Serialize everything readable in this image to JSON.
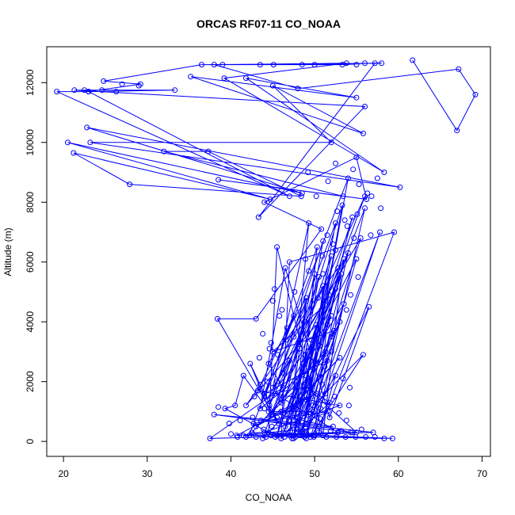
{
  "chart_data": {
    "type": "scatter",
    "title": "ORCAS RF07-11 CO_NOAA",
    "xlabel": "CO_NOAA",
    "ylabel": "Altitude (m)",
    "xlim": [
      18,
      71
    ],
    "ylim": [
      -500,
      13200
    ],
    "xticks": [
      20,
      30,
      40,
      50,
      60,
      70
    ],
    "yticks": [
      0,
      2000,
      4000,
      6000,
      8000,
      10000,
      12000
    ],
    "grid": false,
    "connected": true,
    "series_color": "#0000ff",
    "series": [
      {
        "values": [
          [
            61.7,
            12750
          ],
          [
            67.0,
            10400
          ],
          [
            69.2,
            11600
          ],
          [
            67.2,
            12450
          ],
          [
            48.0,
            11800
          ],
          [
            38.0,
            12600
          ],
          [
            48.5,
            12600
          ],
          [
            58.0,
            12650
          ],
          [
            36.5,
            12600
          ],
          [
            24.8,
            12050
          ],
          [
            29.2,
            11950
          ],
          [
            23.0,
            11700
          ],
          [
            19.2,
            11700
          ],
          [
            47.0,
            8200
          ],
          [
            23.0,
            11700
          ],
          [
            33.3,
            11750
          ],
          [
            21.3,
            11750
          ],
          [
            56.0,
            11200
          ],
          [
            43.3,
            7500
          ],
          [
            57.2,
            12650
          ],
          [
            53.3,
            12600
          ],
          [
            39.0,
            12600
          ],
          [
            53.8,
            12650
          ],
          [
            39.2,
            12150
          ],
          [
            58.3,
            9000
          ],
          [
            41.8,
            12150
          ],
          [
            55.0,
            11500
          ],
          [
            35.2,
            12200
          ],
          [
            55.8,
            10300
          ],
          [
            45.0,
            11900
          ],
          [
            52.0,
            10000
          ],
          [
            23.2,
            10000
          ],
          [
            60.2,
            8500
          ],
          [
            22.8,
            10500
          ],
          [
            48.5,
            8300
          ],
          [
            20.5,
            10000
          ],
          [
            44.7,
            8100
          ],
          [
            21.2,
            9650
          ],
          [
            27.9,
            8600
          ],
          [
            48.4,
            8200
          ],
          [
            37.3,
            9700
          ],
          [
            32.0,
            9700
          ],
          [
            53.4,
            8200
          ],
          [
            38.5,
            8750
          ],
          [
            56.2,
            8100
          ],
          [
            55.0,
            9500
          ],
          [
            44.0,
            8000
          ],
          [
            50.8,
            7100
          ],
          [
            43.0,
            4100
          ],
          [
            38.4,
            4100
          ],
          [
            45.7,
            600
          ],
          [
            42.3,
            2600
          ],
          [
            44.8,
            900
          ],
          [
            41.5,
            2200
          ],
          [
            40.5,
            1200
          ],
          [
            39.3,
            1100
          ],
          [
            44.5,
            300
          ],
          [
            45.5,
            6500
          ],
          [
            51.0,
            200
          ],
          [
            53.2,
            5600
          ],
          [
            48.0,
            800
          ],
          [
            52.0,
            3000
          ],
          [
            43.5,
            1100
          ],
          [
            46.5,
            5800
          ],
          [
            51.8,
            800
          ],
          [
            56.5,
            4500
          ],
          [
            49.0,
            300
          ],
          [
            57.8,
            7000
          ],
          [
            49.5,
            150
          ],
          [
            55.8,
            2900
          ],
          [
            46.0,
            100
          ],
          [
            47.0,
            6000
          ],
          [
            59.5,
            7000
          ],
          [
            50.5,
            300
          ],
          [
            52.5,
            2200
          ],
          [
            48.5,
            400
          ],
          [
            53.5,
            6100
          ],
          [
            45.0,
            900
          ],
          [
            50.5,
            5500
          ],
          [
            47.5,
            700
          ],
          [
            52.0,
            4200
          ],
          [
            46.3,
            300
          ],
          [
            54.5,
            7500
          ],
          [
            49.0,
            1400
          ],
          [
            51.3,
            4700
          ],
          [
            47.5,
            200
          ],
          [
            52.5,
            6400
          ],
          [
            47.8,
            1100
          ],
          [
            53.0,
            4000
          ],
          [
            48.2,
            200
          ],
          [
            55.5,
            6800
          ],
          [
            44.3,
            1400
          ],
          [
            51.5,
            3900
          ],
          [
            50.0,
            200
          ],
          [
            56.0,
            7800
          ],
          [
            46.5,
            900
          ],
          [
            52.5,
            5100
          ],
          [
            48.5,
            300
          ],
          [
            54.0,
            8800
          ],
          [
            44.0,
            1600
          ],
          [
            51.5,
            2700
          ],
          [
            49.0,
            100
          ],
          [
            55.0,
            6100
          ],
          [
            46.0,
            1300
          ],
          [
            53.5,
            4600
          ],
          [
            48.0,
            400
          ],
          [
            50.0,
            5600
          ],
          [
            45.5,
            200
          ],
          [
            56.0,
            8200
          ],
          [
            44.6,
            1200
          ],
          [
            51.0,
            6700
          ],
          [
            47.0,
            200
          ],
          [
            49.3,
            7300
          ],
          [
            45.0,
            1800
          ],
          [
            51.7,
            4900
          ],
          [
            48.5,
            200
          ],
          [
            53.3,
            7900
          ],
          [
            46.0,
            1400
          ],
          [
            52.0,
            6200
          ],
          [
            47.5,
            100
          ],
          [
            49.0,
            4700
          ],
          [
            44.0,
            1500
          ],
          [
            50.3,
            6500
          ],
          [
            48.0,
            300
          ],
          [
            52.5,
            7300
          ],
          [
            45.5,
            2000
          ],
          [
            51.0,
            5200
          ],
          [
            49.0,
            200
          ],
          [
            54.0,
            6300
          ],
          [
            47.0,
            1100
          ],
          [
            53.0,
            2800
          ],
          [
            43.8,
            100
          ],
          [
            48.8,
            4000
          ],
          [
            41.8,
            1200
          ],
          [
            50.2,
            3900
          ],
          [
            46.5,
            500
          ],
          [
            51.3,
            3000
          ],
          [
            42.2,
            200
          ],
          [
            47.5,
            4200
          ],
          [
            43.2,
            1700
          ],
          [
            53.0,
            1200
          ],
          [
            44.0,
            300
          ],
          [
            58.3,
            100
          ],
          [
            41.5,
            200
          ],
          [
            52.8,
            300
          ],
          [
            45.3,
            1600
          ],
          [
            48.0,
            1800
          ],
          [
            43.0,
            500
          ],
          [
            50.2,
            1600
          ],
          [
            40.7,
            200
          ],
          [
            52.2,
            500
          ],
          [
            38.0,
            900
          ],
          [
            54.3,
            300
          ],
          [
            44.5,
            1000
          ],
          [
            49.8,
            1000
          ],
          [
            42.7,
            600
          ],
          [
            51.6,
            1000
          ],
          [
            45.5,
            200
          ],
          [
            55.0,
            300
          ],
          [
            48.7,
            1900
          ],
          [
            51.8,
            1300
          ],
          [
            47.3,
            100
          ],
          [
            49.3,
            1500
          ],
          [
            43.6,
            700
          ],
          [
            57.0,
            300
          ],
          [
            44.8,
            200
          ],
          [
            59.3,
            100
          ],
          [
            42.5,
            300
          ],
          [
            50.0,
            200
          ],
          [
            37.5,
            100
          ],
          [
            46.2,
            1800
          ],
          [
            44.5,
            2600
          ],
          [
            49.0,
            4800
          ],
          [
            47.2,
            1000
          ],
          [
            52.3,
            3700
          ],
          [
            45.0,
            3000
          ],
          [
            51.0,
            4500
          ],
          [
            46.6,
            3400
          ],
          [
            52.8,
            5800
          ]
        ],
        "open_points": [
          [
            45.8,
            4200
          ],
          [
            46.7,
            3800
          ],
          [
            47.5,
            3500
          ],
          [
            45.2,
            5100
          ],
          [
            43.8,
            3600
          ],
          [
            44.8,
            3300
          ],
          [
            47.0,
            2700
          ],
          [
            48.2,
            3100
          ],
          [
            46.2,
            2300
          ],
          [
            44.3,
            2000
          ],
          [
            42.8,
            1500
          ],
          [
            43.5,
            1900
          ],
          [
            49.0,
            2200
          ],
          [
            50.1,
            2600
          ],
          [
            48.3,
            1300
          ],
          [
            50.7,
            1100
          ],
          [
            51.3,
            1600
          ],
          [
            52.4,
            1500
          ],
          [
            45.0,
            4700
          ],
          [
            45.6,
            2900
          ],
          [
            46.1,
            4400
          ],
          [
            47.6,
            5000
          ],
          [
            49.3,
            5700
          ],
          [
            50.9,
            6200
          ],
          [
            51.5,
            6900
          ],
          [
            52.7,
            7700
          ],
          [
            53.6,
            7400
          ],
          [
            55.3,
            8600
          ],
          [
            57.5,
            8800
          ],
          [
            56.8,
            8200
          ],
          [
            50.2,
            8200
          ],
          [
            51.6,
            8700
          ],
          [
            52.5,
            9300
          ],
          [
            54.6,
            9100
          ],
          [
            49.2,
            9000
          ],
          [
            51.0,
            5600
          ],
          [
            50.4,
            4800
          ],
          [
            48.9,
            6100
          ],
          [
            49.6,
            3400
          ],
          [
            50.6,
            3200
          ],
          [
            52.0,
            3500
          ],
          [
            51.2,
            2500
          ],
          [
            53.4,
            2100
          ],
          [
            54.2,
            1800
          ],
          [
            50.9,
            1900
          ],
          [
            49.8,
            1200
          ],
          [
            48.0,
            600
          ],
          [
            46.9,
            700
          ],
          [
            45.5,
            800
          ],
          [
            44.9,
            500
          ],
          [
            43.9,
            400
          ],
          [
            42.6,
            800
          ],
          [
            41.1,
            700
          ],
          [
            40.0,
            250
          ],
          [
            41.8,
            150
          ],
          [
            43.0,
            150
          ],
          [
            44.2,
            150
          ],
          [
            45.3,
            150
          ],
          [
            46.4,
            150
          ],
          [
            47.7,
            150
          ],
          [
            48.8,
            150
          ],
          [
            49.9,
            150
          ],
          [
            51.4,
            150
          ],
          [
            52.6,
            150
          ],
          [
            53.7,
            150
          ],
          [
            54.9,
            150
          ],
          [
            56.1,
            150
          ],
          [
            57.2,
            150
          ],
          [
            40.8,
            150
          ],
          [
            47.1,
            350
          ],
          [
            48.6,
            350
          ],
          [
            50.3,
            350
          ],
          [
            51.9,
            350
          ],
          [
            53.2,
            350
          ],
          [
            54.5,
            300
          ],
          [
            46.0,
            1000
          ],
          [
            44.0,
            1100
          ],
          [
            47.9,
            1200
          ],
          [
            50.7,
            750
          ],
          [
            52.9,
            950
          ],
          [
            54.1,
            1200
          ],
          [
            53.8,
            700
          ],
          [
            55.6,
            400
          ],
          [
            38.5,
            1150
          ],
          [
            39.8,
            600
          ],
          [
            43.4,
            2800
          ],
          [
            44.6,
            3100
          ],
          [
            48.6,
            2600
          ],
          [
            53.8,
            4400
          ],
          [
            54.3,
            4900
          ],
          [
            55.2,
            5500
          ],
          [
            52.2,
            6600
          ],
          [
            53.9,
            7200
          ],
          [
            55.1,
            7600
          ],
          [
            56.3,
            8300
          ],
          [
            57.9,
            7800
          ],
          [
            54.7,
            6800
          ],
          [
            56.7,
            6900
          ],
          [
            29.0,
            11900
          ],
          [
            27.0,
            11950
          ],
          [
            26.3,
            11700
          ],
          [
            22.5,
            11750
          ],
          [
            24.6,
            11750
          ],
          [
            43.5,
            12600
          ],
          [
            45.1,
            12600
          ],
          [
            50.0,
            12600
          ],
          [
            55.0,
            12600
          ],
          [
            56.0,
            12650
          ]
        ]
      }
    ]
  }
}
